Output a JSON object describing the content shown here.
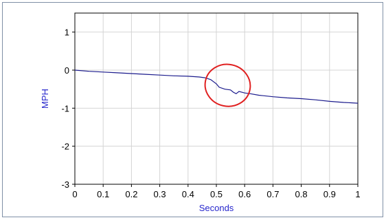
{
  "chart_data": {
    "type": "line",
    "title": "",
    "xlabel": "Seconds",
    "ylabel": "MPH",
    "xlim": [
      0,
      1
    ],
    "ylim": [
      -3,
      1.5
    ],
    "xticks": [
      0,
      0.1,
      0.2,
      0.3,
      0.4,
      0.5,
      0.6,
      0.7,
      0.8,
      0.9,
      1
    ],
    "xtick_labels": [
      "0",
      "0.1",
      "0.2",
      "0.3",
      "0.4",
      "0.5",
      "0.6",
      "0.7",
      "0.8",
      "0.9",
      "1"
    ],
    "yticks": [
      1,
      0,
      -1,
      -2,
      -3
    ],
    "ytick_labels": [
      "1",
      "0",
      "-1",
      "-2",
      "-3"
    ],
    "grid": true,
    "legend": "none",
    "series": [
      {
        "color": "#1a1a8c",
        "x": [
          0,
          0.05,
          0.1,
          0.15,
          0.2,
          0.25,
          0.3,
          0.35,
          0.4,
          0.44,
          0.46,
          0.48,
          0.5,
          0.51,
          0.53,
          0.55,
          0.56,
          0.57,
          0.58,
          0.6,
          0.62,
          0.65,
          0.7,
          0.75,
          0.8,
          0.85,
          0.9,
          0.95,
          1.0
        ],
        "y": [
          0,
          -0.03,
          -0.05,
          -0.07,
          -0.09,
          -0.11,
          -0.13,
          -0.15,
          -0.16,
          -0.18,
          -0.2,
          -0.25,
          -0.36,
          -0.45,
          -0.5,
          -0.52,
          -0.58,
          -0.62,
          -0.56,
          -0.6,
          -0.62,
          -0.66,
          -0.7,
          -0.73,
          -0.75,
          -0.78,
          -0.82,
          -0.85,
          -0.87
        ]
      }
    ],
    "annotations": [
      {
        "type": "ellipse",
        "color": "#e02020",
        "cx": 0.54,
        "cy": -0.4,
        "rx": 0.08,
        "ry": 0.55
      }
    ]
  }
}
